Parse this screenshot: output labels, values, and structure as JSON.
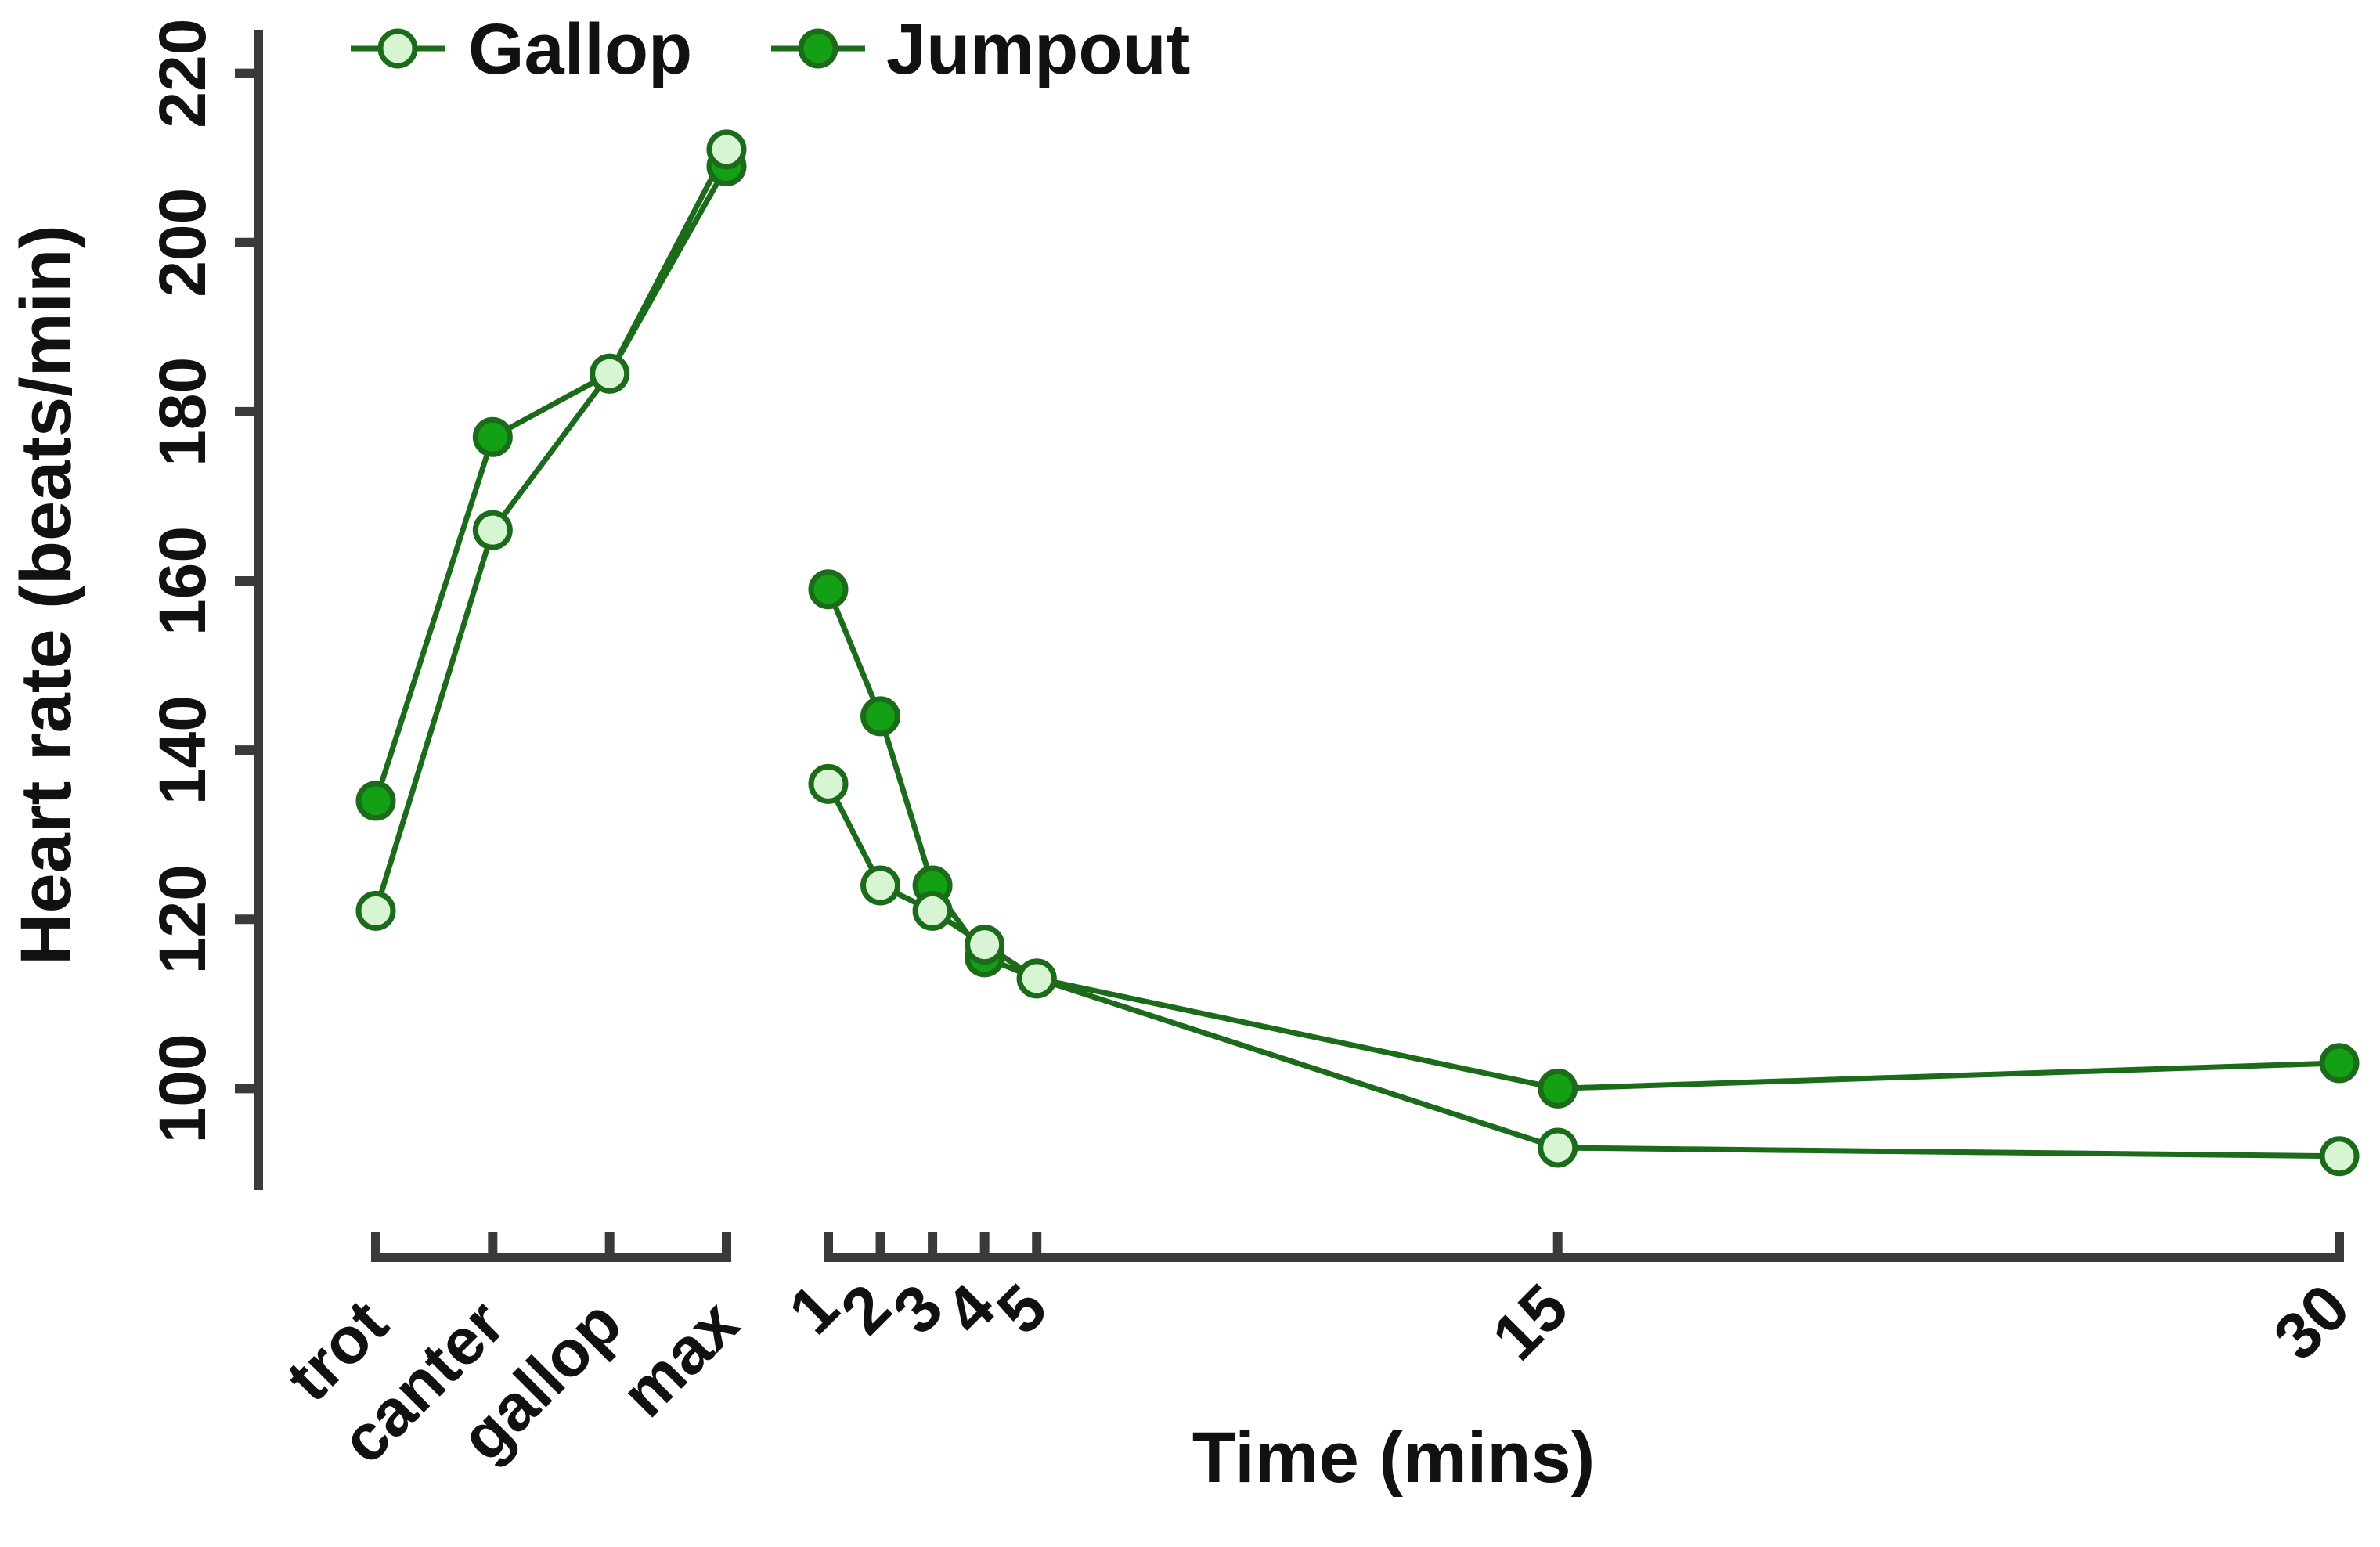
{
  "chart_data": {
    "type": "line",
    "title": "",
    "xlabel": "Time (mins)",
    "ylabel": "Heart rate (beats/min)",
    "ylim": [
      88,
      222
    ],
    "yticks": [
      100,
      120,
      140,
      160,
      180,
      200,
      220
    ],
    "grid": false,
    "legend_position": "top-left",
    "exercise_categories": [
      "trot",
      "canter",
      "gallop",
      "max"
    ],
    "recovery_times": [
      1,
      2,
      3,
      4,
      5,
      15,
      30
    ],
    "recovery_tick_labels": [
      "1",
      "2",
      "3",
      "4",
      "5",
      "15",
      "30"
    ],
    "series": [
      {
        "name": "Gallop",
        "color": "#d7f5d2",
        "edge_color": "#1b6b1b",
        "exercise_values": [
          121,
          166,
          184.5,
          211
        ],
        "recovery_values": [
          136,
          124,
          121,
          117,
          113,
          93,
          92
        ]
      },
      {
        "name": "Jumpout",
        "color": "#14a014",
        "edge_color": "#1b6b1b",
        "exercise_values": [
          134,
          177,
          184.5,
          209
        ],
        "recovery_values": [
          159,
          144,
          124,
          115.5,
          113,
          100,
          103
        ]
      }
    ]
  }
}
